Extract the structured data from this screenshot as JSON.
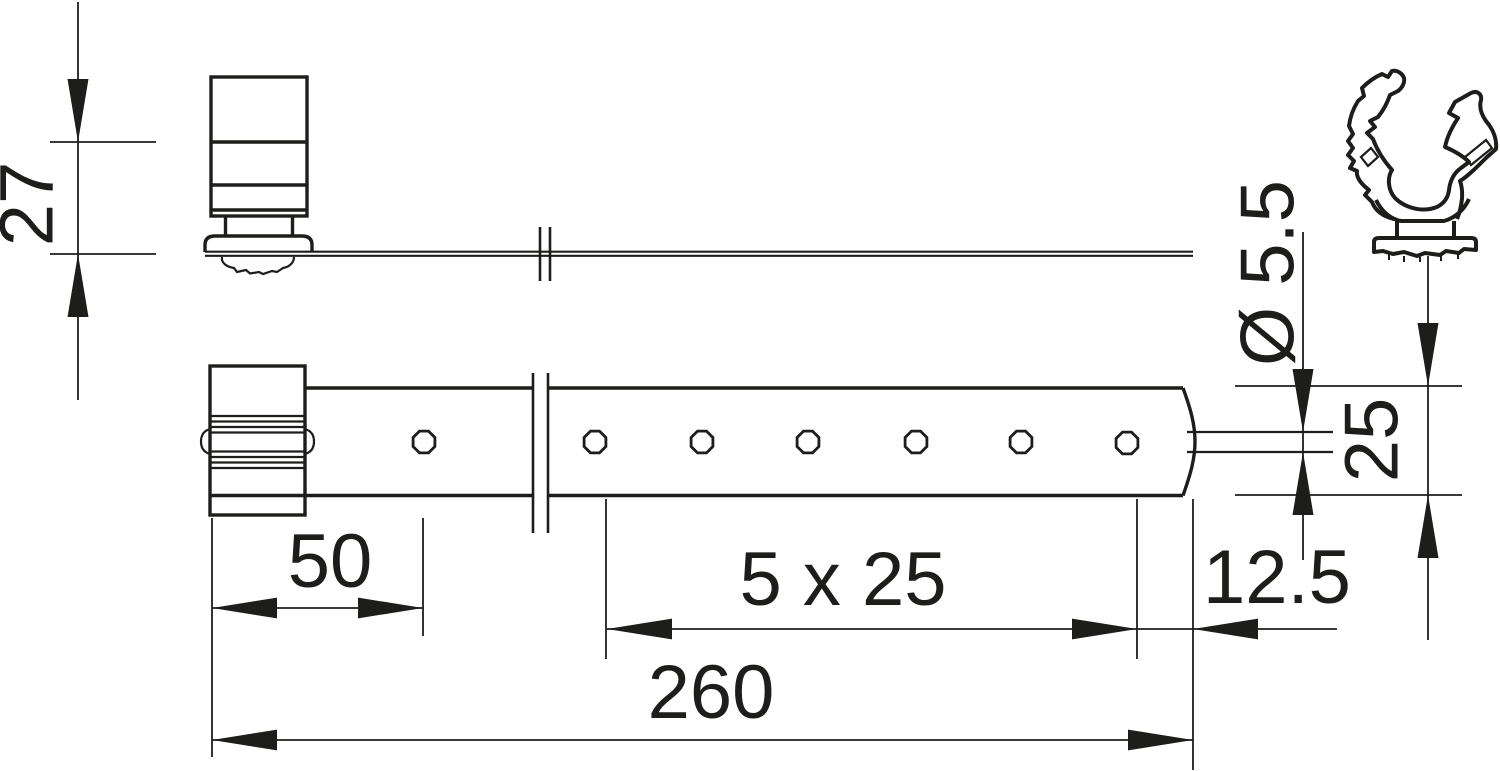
{
  "meta": {
    "background": "#ffffff",
    "line_color": "#1d1d1b"
  },
  "dimensions": {
    "clip_height": "27",
    "lead_hole_offset": "50",
    "hole_pitch": "5 x 25",
    "overall_length": "260",
    "last_hole_to_end": "12.5",
    "hole_diameter": "Ø 5.5",
    "strap_width": "25"
  },
  "holes": {
    "count": 7
  }
}
